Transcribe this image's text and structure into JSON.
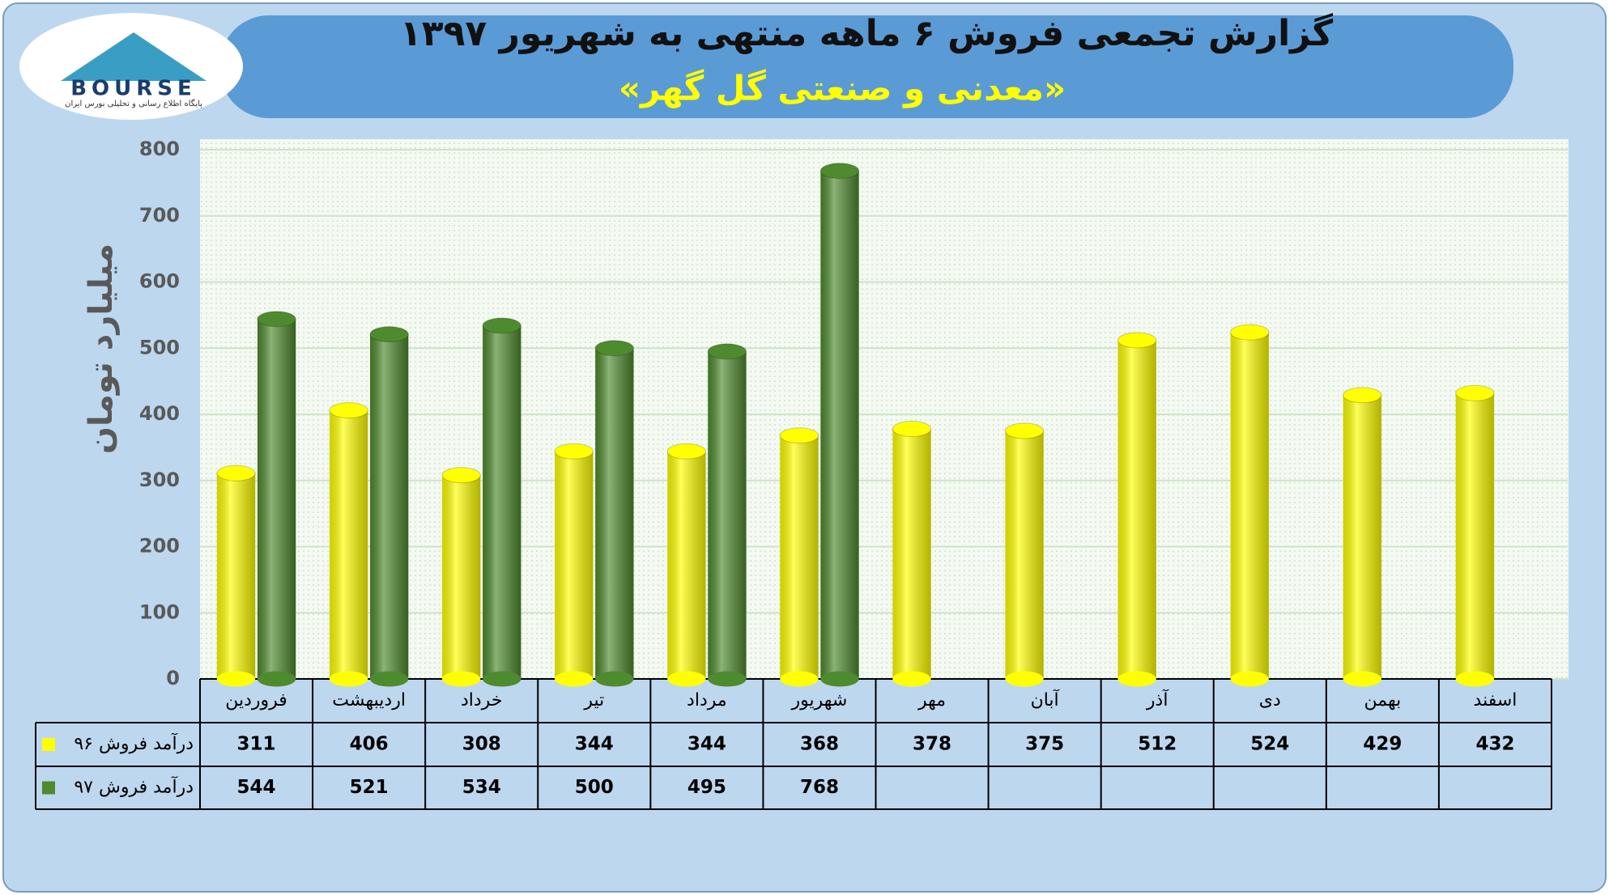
{
  "logo": {
    "text": "BOURSE",
    "tagline": "پایگاه اطلاع رسانی و تحلیلی بورس ایران"
  },
  "chart_data": {
    "type": "bar",
    "title": "گزارش تجمعی فروش ۶ ماهه منتهی به شهریور ۱۳۹۷",
    "subtitle": "«معدنی و صنعتی گل گهر»",
    "y_label": "میلیارد تومان",
    "categories": [
      "فروردین",
      "اردیبهشت",
      "خرداد",
      "تیر",
      "مرداد",
      "شهریور",
      "مهر",
      "آبان",
      "آذر",
      "دی",
      "بهمن",
      "اسفند"
    ],
    "series": [
      {
        "name": "درآمد فروش ۹۶",
        "color": "#ffff00",
        "values": [
          311,
          406,
          308,
          344,
          344,
          368,
          378,
          375,
          512,
          524,
          429,
          432
        ]
      },
      {
        "name": "درآمد فروش ۹۷",
        "color": "#4e8a2e",
        "values": [
          544,
          521,
          534,
          500,
          495,
          768,
          null,
          null,
          null,
          null,
          null,
          null
        ]
      }
    ],
    "ylim": [
      0,
      800
    ],
    "yticks": [
      0,
      100,
      200,
      300,
      400,
      500,
      600,
      700,
      800
    ],
    "grid": true
  }
}
